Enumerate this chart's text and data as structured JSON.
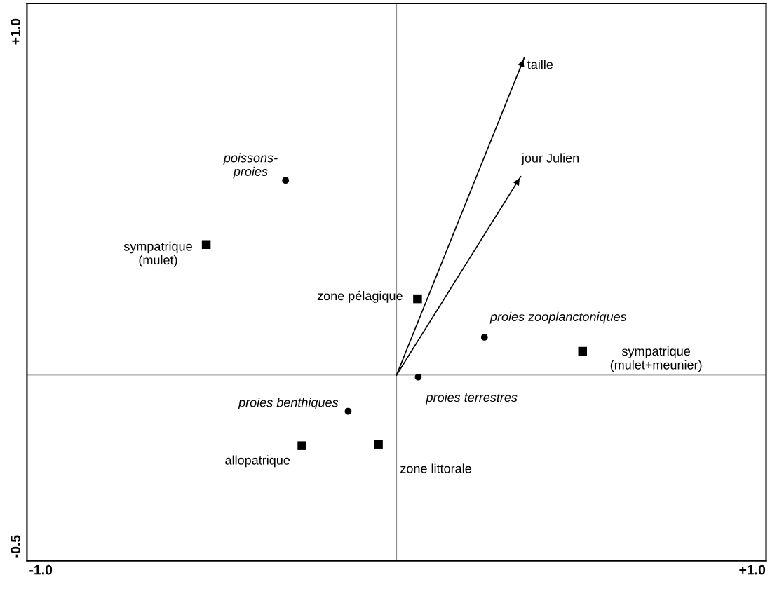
{
  "chart_data": {
    "type": "scatter",
    "xlim": [
      -1.039,
      1.039
    ],
    "ylim": [
      -0.541,
      1.082
    ],
    "xticks": [
      {
        "value": -1.0,
        "label": "-1.0"
      },
      {
        "value": 1.0,
        "label": "+1.0"
      }
    ],
    "yticks": [
      {
        "value": -0.5,
        "label": "-0.5"
      },
      {
        "value": 1.0,
        "label": "+1.0"
      }
    ],
    "legend": false,
    "ref_lines": [
      {
        "axis": "x",
        "value": 0,
        "color": "#8c8c8c"
      },
      {
        "axis": "y",
        "value": 0,
        "color": "#a6a6a6"
      }
    ],
    "series": [
      {
        "marker": "circle",
        "color": "#000000",
        "x": [
          -0.312,
          0.247,
          0.061,
          -0.136
        ],
        "values": [
          0.567,
          0.11,
          -0.006,
          -0.106
        ],
        "value_labels": [
          "poissons-\nproies",
          "proies zooplanctoniques",
          "proies terrestres",
          "proies benthiques"
        ]
      },
      {
        "marker": "square",
        "color": "#000000",
        "x": [
          -0.535,
          0.059,
          0.523,
          -0.051,
          -0.266
        ],
        "values": [
          0.38,
          0.222,
          0.069,
          -0.202,
          -0.206
        ],
        "value_labels": [
          "sympatrique\n(mulet)",
          "zone pélagique",
          "sympatrique\n(mulet+meunier)",
          "zone littorale",
          "allopatrique"
        ]
      },
      {
        "type": "line",
        "color": "#000000",
        "x": [
          0,
          0.359
        ],
        "values": [
          0,
          0.924
        ],
        "value_labels": [
          null,
          "taille"
        ]
      },
      {
        "type": "line",
        "color": "#000000",
        "x": [
          0,
          0.349
        ],
        "values": [
          0,
          0.578
        ],
        "value_labels": [
          null,
          "jour Julien"
        ]
      }
    ]
  }
}
